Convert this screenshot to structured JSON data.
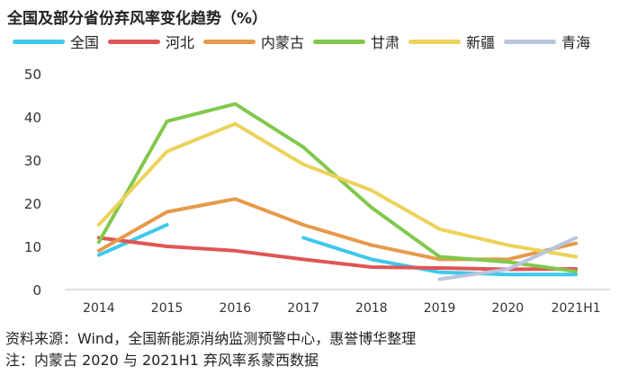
{
  "chart_data": {
    "type": "line",
    "title": "全国及部分省份弃风率变化趋势（%）",
    "categories": [
      "2014",
      "2015",
      "2016",
      "2017",
      "2018",
      "2019",
      "2020",
      "2021H1"
    ],
    "ylim": [
      0,
      50
    ],
    "yticks": [
      "0",
      "10",
      "20",
      "30",
      "40",
      "50"
    ],
    "grid": false,
    "legend_position": "top",
    "series": [
      {
        "name": "全国",
        "color": "#3fc8ee",
        "values": [
          8,
          15,
          null,
          12,
          7,
          4,
          3.5,
          3.5
        ]
      },
      {
        "name": "河北",
        "color": "#e05555",
        "values": [
          12,
          10,
          9,
          7,
          5.2,
          5,
          4.7,
          4.8
        ]
      },
      {
        "name": "内蒙古",
        "color": "#e69a4a",
        "values": [
          9,
          18,
          21,
          15,
          10.3,
          7,
          7,
          10.7
        ]
      },
      {
        "name": "甘肃",
        "color": "#82c84c",
        "values": [
          11,
          39,
          43,
          33,
          19,
          7.6,
          6.4,
          4.2
        ]
      },
      {
        "name": "新疆",
        "color": "#ecd25a",
        "values": [
          15,
          32,
          38.4,
          29,
          23,
          14,
          10.3,
          7.6
        ]
      },
      {
        "name": "青海",
        "color": "#b9c4dd",
        "values": [
          null,
          null,
          null,
          null,
          null,
          2.4,
          4.7,
          12
        ]
      }
    ]
  },
  "footer": {
    "source": "资料来源：Wind，全国新能源消纳监测预警中心，惠誉博华整理",
    "note": "注：内蒙古 2020 与 2021H1 弃风率系蒙西数据"
  }
}
